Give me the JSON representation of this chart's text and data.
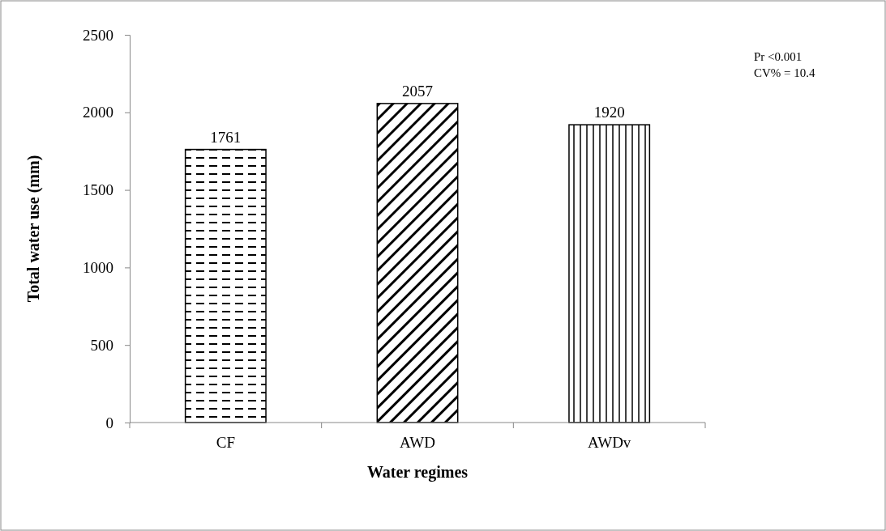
{
  "chart_data": {
    "type": "bar",
    "xlabel": "Water regimes",
    "ylabel": "Total water use (mm)",
    "categories": [
      "CF",
      "AWD",
      "AWDv"
    ],
    "values": [
      1761,
      2057,
      1920
    ],
    "color": "#000000",
    "ylim": [
      0,
      2500
    ],
    "yticks": [
      0,
      500,
      1000,
      1500,
      2000,
      2500
    ],
    "data_labels": true,
    "grid": false,
    "annotations": [
      "Pr <0.001",
      "CV% = 10.4"
    ]
  }
}
